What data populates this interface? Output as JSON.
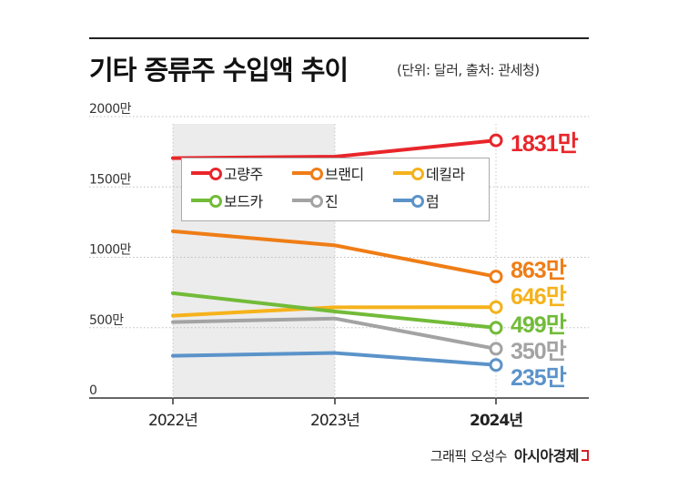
{
  "title": "기타 증류주 수입액 추이",
  "subtitle": "(단위: 달러, 출처: 관세청)",
  "credit": {
    "text": "그래픽 오성수",
    "brand": "아시아경제"
  },
  "chart_data": {
    "type": "line",
    "x": [
      "2022년",
      "2023년",
      "2024년"
    ],
    "ylim": [
      0,
      2000
    ],
    "yticks": [
      0,
      500,
      1000,
      1500,
      2000
    ],
    "ytick_labels": [
      "0",
      "500만",
      "1000만",
      "1500만",
      "2000만"
    ],
    "grid": true,
    "legend_position": "upper-left",
    "highlight_band": [
      "2022년",
      "2023년"
    ],
    "series": [
      {
        "name": "고량주",
        "color": "#e8262b",
        "values": [
          1705,
          1715,
          1831
        ],
        "end_label": "1831만"
      },
      {
        "name": "브랜디",
        "color": "#ef7d16",
        "values": [
          1185,
          1085,
          863
        ],
        "end_label": "863만"
      },
      {
        "name": "데킬라",
        "color": "#f5b21b",
        "values": [
          585,
          645,
          646
        ],
        "end_label": "646만"
      },
      {
        "name": "보드카",
        "color": "#72bb38",
        "values": [
          745,
          615,
          499
        ],
        "end_label": "499만"
      },
      {
        "name": "진",
        "color": "#a3a3a3",
        "values": [
          540,
          565,
          350
        ],
        "end_label": "350만"
      },
      {
        "name": "럼",
        "color": "#5b93c9",
        "values": [
          300,
          320,
          235
        ],
        "end_label": "235만"
      }
    ]
  }
}
